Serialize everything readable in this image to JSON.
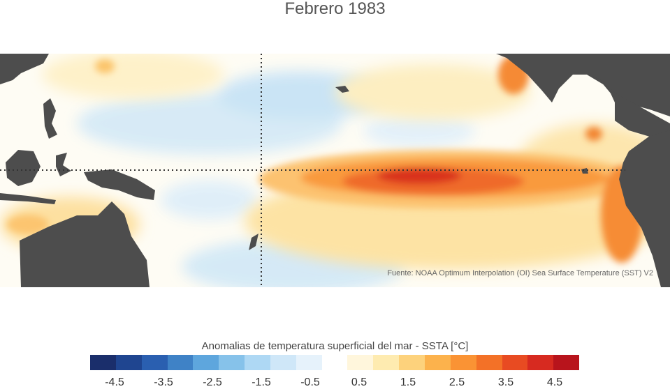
{
  "title": "Febrero 1983",
  "source": "Fuente: NOAA Optimum Interpolation (OI) Sea Surface Temperature (SST) V2",
  "colorbar": {
    "label": "Anomalias de temperatura superficial del mar - SSTA  [°C]",
    "colors": [
      "#1a2e6b",
      "#1f4590",
      "#2a5fb0",
      "#3f82c6",
      "#5ea6dd",
      "#86c2ea",
      "#aed8f4",
      "#cfe7f8",
      "#e6f2fb",
      "#ffffff",
      "#fff6dc",
      "#feebb0",
      "#fdd27c",
      "#fcb24c",
      "#fa9334",
      "#f37127",
      "#e84b22",
      "#d72a20",
      "#b8141c"
    ],
    "tick_labels": [
      "-4.5",
      "-3.5",
      "-2.5",
      "-1.5",
      "-0.5",
      "0.5",
      "1.5",
      "2.5",
      "3.5",
      "4.5"
    ],
    "tick_values": [
      -4.5,
      -3.5,
      -2.5,
      -1.5,
      -0.5,
      0.5,
      1.5,
      2.5,
      3.5,
      4.5
    ],
    "range": [
      -5,
      5
    ]
  },
  "map": {
    "land_color": "#4d4d4d",
    "reference_lines": [
      "equator",
      "180th-meridian"
    ]
  }
}
